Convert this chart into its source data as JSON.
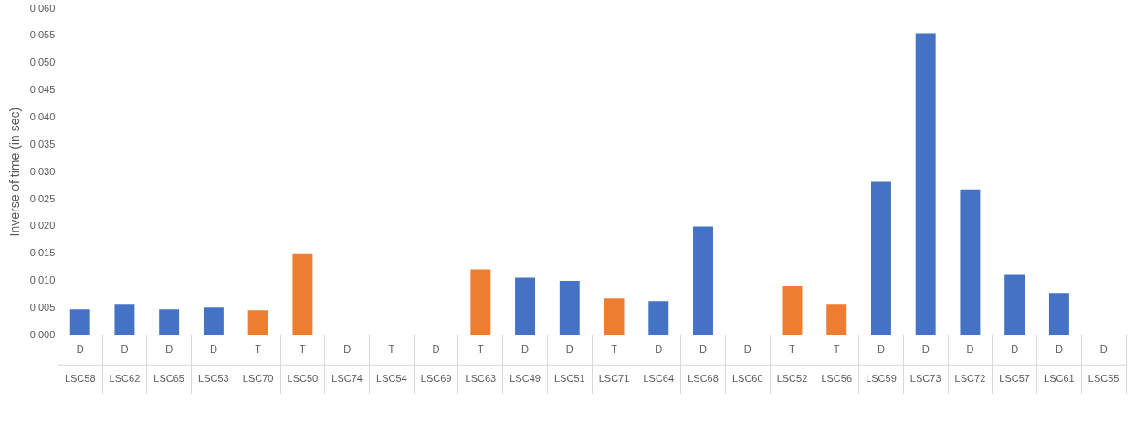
{
  "chart_data": {
    "type": "bar",
    "ylabel": "Inverse of time (in sec)",
    "categories": [
      "LSC58",
      "LSC62",
      "LSC65",
      "LSC53",
      "LSC70",
      "LSC50",
      "LSC74",
      "LSC54",
      "LSC69",
      "LSC63",
      "LSC49",
      "LSC51",
      "LSC71",
      "LSC64",
      "LSC68",
      "LSC60",
      "LSC52",
      "LSC56",
      "LSC59",
      "LSC73",
      "LSC72",
      "LSC57",
      "LSC61",
      "LSC55"
    ],
    "values": [
      0.0048,
      0.0056,
      0.0048,
      0.0051,
      0.0046,
      0.0149,
      0,
      0,
      0,
      0.0121,
      0.0106,
      0.01,
      0.0068,
      0.0063,
      0.02,
      0,
      0.009,
      0.0056,
      0.0282,
      0.0555,
      0.0268,
      0.0111,
      0.0078,
      0
    ],
    "colors": [
      "#4472c4",
      "#4472c4",
      "#4472c4",
      "#4472c4",
      "#ed7d31",
      "#ed7d31",
      "#4472c4",
      "#4472c4",
      "#4472c4",
      "#ed7d31",
      "#4472c4",
      "#4472c4",
      "#ed7d31",
      "#4472c4",
      "#4472c4",
      "#4472c4",
      "#ed7d31",
      "#ed7d31",
      "#4472c4",
      "#4472c4",
      "#4472c4",
      "#4472c4",
      "#4472c4",
      "#4472c4"
    ],
    "ylim": [
      0,
      0.06
    ],
    "yticks": [
      {
        "value": 0,
        "label": "0.000"
      },
      {
        "value": 0.005,
        "label": "0.005"
      },
      {
        "value": 0.01,
        "label": "0.010"
      },
      {
        "value": 0.015,
        "label": "0.015"
      },
      {
        "value": 0.02,
        "label": "0.020"
      },
      {
        "value": 0.025,
        "label": "0.025"
      },
      {
        "value": 0.03,
        "label": "0.030"
      },
      {
        "value": 0.035,
        "label": "0.035"
      },
      {
        "value": 0.04,
        "label": "0.040"
      },
      {
        "value": 0.045,
        "label": "0.045"
      },
      {
        "value": 0.05,
        "label": "0.050"
      },
      {
        "value": 0.055,
        "label": "0.055"
      },
      {
        "value": 0.06,
        "label": "0.060"
      }
    ],
    "annotations": [
      "D",
      "D",
      "D",
      "D",
      "T",
      "T",
      "D",
      "T",
      "D",
      "T",
      "D",
      "D",
      "T",
      "D",
      "D",
      "D",
      "T",
      "T",
      "D",
      "D",
      "D",
      "D",
      "D",
      "D"
    ],
    "grid": false,
    "legend": false
  }
}
